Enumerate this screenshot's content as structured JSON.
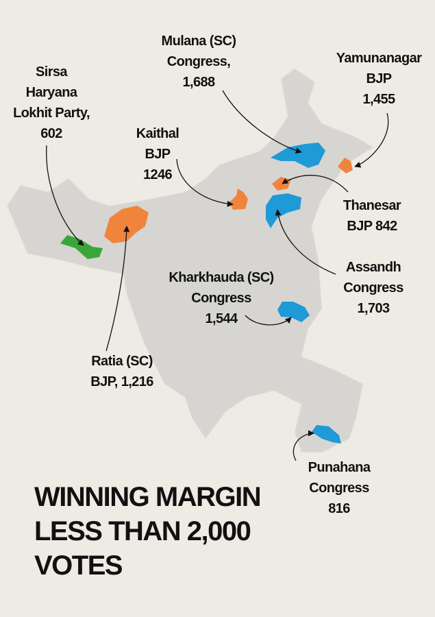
{
  "title": {
    "lines": [
      "WINNING MARGIN",
      "LESS THAN 2,000",
      "VOTES"
    ]
  },
  "constituencies": [
    {
      "lines": [
        "Mulana (SC)",
        "Congress,",
        "1,688"
      ]
    },
    {
      "lines": [
        "Yamunanagar",
        "BJP",
        "1,455"
      ]
    },
    {
      "lines": [
        "Sirsa",
        "Haryana",
        "Lokhit Party,",
        "602"
      ]
    },
    {
      "lines": [
        "Kaithal",
        "BJP",
        "1246"
      ]
    },
    {
      "lines": [
        "Thanesar",
        "BJP 842"
      ]
    },
    {
      "lines": [
        "Assandh",
        "Congress",
        "1,703"
      ]
    },
    {
      "lines": [
        "Kharkhauda (SC)",
        "Congress",
        "1,544"
      ]
    },
    {
      "lines": [
        "Ratia (SC)",
        "BJP, 1,216"
      ]
    },
    {
      "lines": [
        "Punahana",
        "Congress",
        "816"
      ]
    }
  ]
}
